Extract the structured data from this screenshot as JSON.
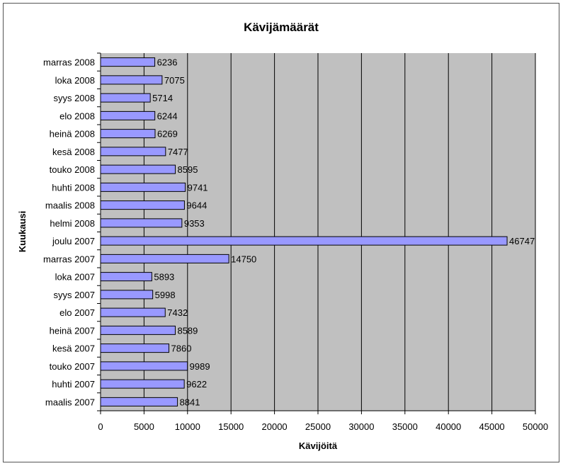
{
  "chart_data": {
    "type": "bar",
    "orientation": "horizontal",
    "title": "Kävijämäärät",
    "xlabel": "Kävijöitä",
    "ylabel": "Kuukausi",
    "xlim": [
      0,
      50000
    ],
    "xticks": [
      "0",
      "5000",
      "10000",
      "15000",
      "20000",
      "25000",
      "30000",
      "35000",
      "40000",
      "45000",
      "50000"
    ],
    "grid": true,
    "legend": "none",
    "bar_color": "#9999ff",
    "plot_bg": "#c0c0c0",
    "categories": [
      "marras 2008",
      "loka 2008",
      "syys 2008",
      "elo 2008",
      "heinä 2008",
      "kesä 2008",
      "touko 2008",
      "huhti 2008",
      "maalis 2008",
      "helmi 2008",
      "joulu 2007",
      "marras 2007",
      "loka 2007",
      "syys 2007",
      "elo 2007",
      "heinä 2007",
      "kesä 2007",
      "touko 2007",
      "huhti 2007",
      "maalis 2007"
    ],
    "values": [
      6236,
      7075,
      5714,
      6244,
      6269,
      7477,
      8595,
      9741,
      9644,
      9353,
      46747,
      14750,
      5893,
      5998,
      7432,
      8589,
      7860,
      9989,
      9622,
      8841
    ]
  }
}
